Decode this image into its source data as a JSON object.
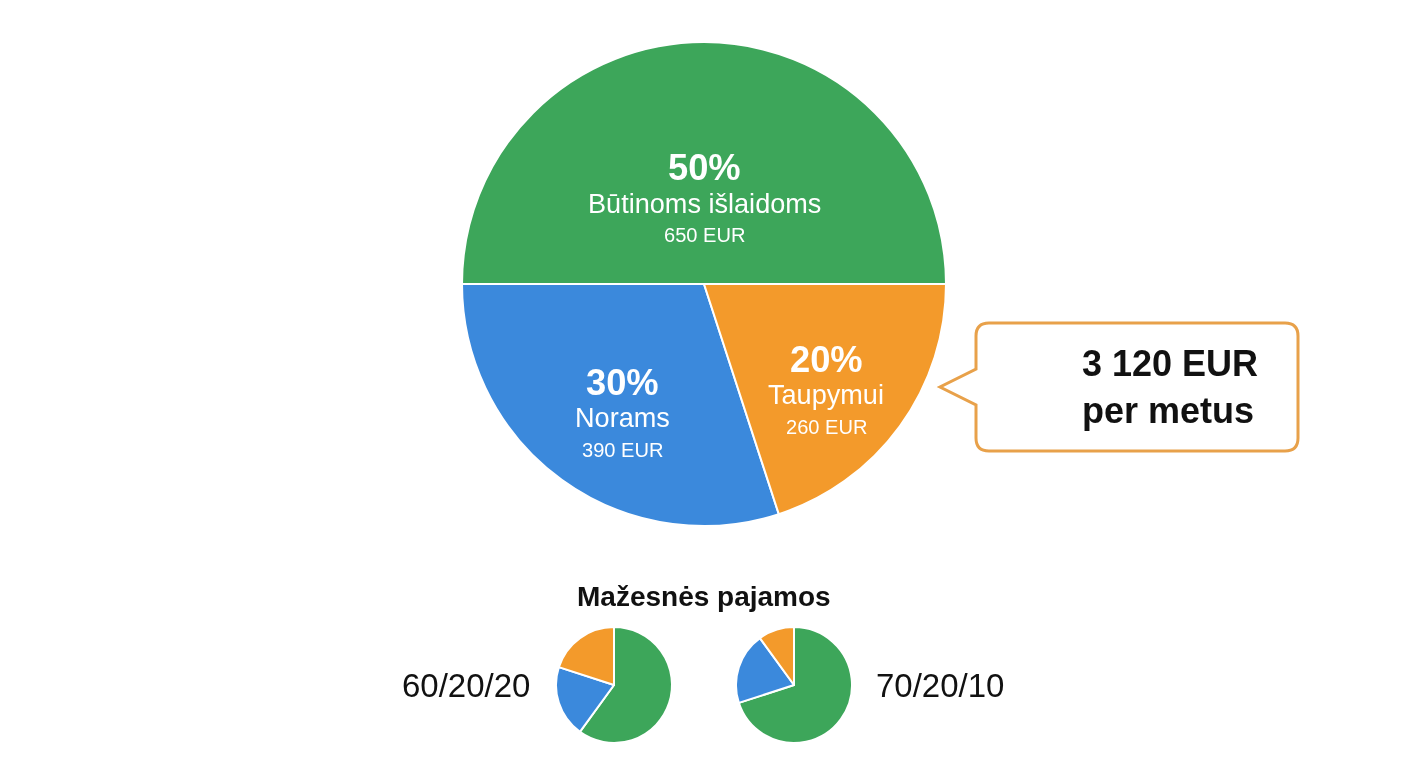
{
  "chart_data": [
    {
      "type": "pie",
      "categories": [
        "Būtinoms išlaidoms",
        "Norams",
        "Taupymui"
      ],
      "values": [
        50,
        30,
        20
      ],
      "value_labels": [
        "50%",
        "30%",
        "20%"
      ],
      "colors": [
        "#3da65a",
        "#3b89dc",
        "#f39a2b"
      ],
      "annotations": [
        "650 EUR",
        "390 EUR",
        "260 EUR",
        "3 120 EUR\nper metus"
      ]
    },
    {
      "type": "pie",
      "title": "60/20/20",
      "categories": [
        null,
        null,
        null
      ],
      "values": [
        60,
        20,
        20
      ],
      "colors": [
        "#3da65a",
        "#3b89dc",
        "#f39a2b"
      ],
      "annotations": [
        "Mažesnės pajamos"
      ]
    },
    {
      "type": "pie",
      "title": "70/20/10",
      "categories": [
        null,
        null,
        null
      ],
      "values": [
        70,
        20,
        10
      ],
      "colors": [
        "#3da65a",
        "#3b89dc",
        "#f39a2b"
      ]
    }
  ]
}
